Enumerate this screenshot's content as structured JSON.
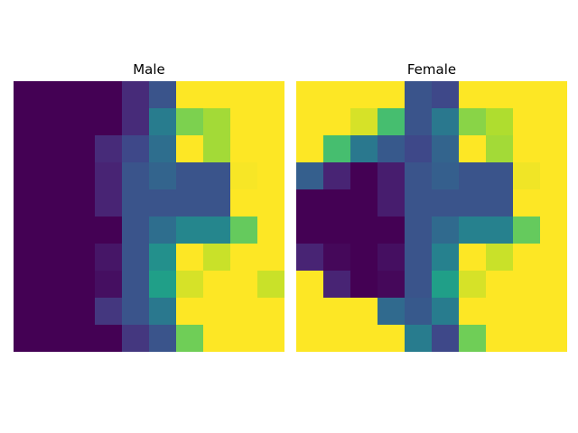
{
  "colormap": [
    "#440154",
    "#482878",
    "#3e4989",
    "#31688e",
    "#26828e",
    "#1f9e89",
    "#35b779",
    "#6ece58",
    "#b5de2b",
    "#fde725"
  ],
  "chart_data": [
    {
      "type": "heatmap",
      "title": "Male",
      "axis": "off",
      "value_range": [
        0,
        1
      ],
      "grid": [
        [
          0.0,
          0.0,
          0.0,
          0.0,
          0.12,
          0.26,
          1.0,
          1.0,
          1.0,
          1.0
        ],
        [
          0.0,
          0.0,
          0.0,
          0.0,
          0.12,
          0.42,
          0.8,
          0.86,
          1.0,
          1.0
        ],
        [
          0.0,
          0.0,
          0.0,
          0.12,
          0.22,
          0.36,
          1.0,
          0.86,
          1.0,
          1.0
        ],
        [
          0.0,
          0.0,
          0.0,
          0.1,
          0.26,
          0.32,
          0.26,
          0.26,
          0.99,
          1.0
        ],
        [
          0.0,
          0.0,
          0.0,
          0.1,
          0.26,
          0.26,
          0.26,
          0.26,
          1.0,
          1.0
        ],
        [
          0.0,
          0.0,
          0.0,
          0.0,
          0.26,
          0.36,
          0.46,
          0.46,
          0.76,
          1.0
        ],
        [
          0.0,
          0.0,
          0.0,
          0.06,
          0.26,
          0.5,
          1.0,
          0.92,
          1.0,
          1.0
        ],
        [
          0.0,
          0.0,
          0.0,
          0.04,
          0.26,
          0.56,
          0.94,
          1.0,
          1.0,
          0.92
        ],
        [
          0.0,
          0.0,
          0.0,
          0.16,
          0.26,
          0.4,
          1.0,
          1.0,
          1.0,
          1.0
        ],
        [
          0.0,
          0.0,
          0.0,
          0.0,
          0.16,
          0.26,
          0.78,
          1.0,
          1.0,
          1.0
        ]
      ]
    },
    {
      "type": "heatmap",
      "title": "Female",
      "axis": "off",
      "value_range": [
        0,
        1
      ],
      "grid": [
        [
          1.0,
          1.0,
          1.0,
          1.0,
          0.26,
          0.22,
          1.0,
          1.0,
          1.0,
          1.0
        ],
        [
          1.0,
          1.0,
          0.94,
          0.7,
          0.26,
          0.4,
          0.82,
          0.88,
          1.0,
          1.0
        ],
        [
          1.0,
          0.7,
          0.4,
          0.28,
          0.22,
          0.32,
          1.0,
          0.86,
          1.0,
          1.0
        ],
        [
          0.3,
          0.1,
          0.0,
          0.08,
          0.26,
          0.3,
          0.26,
          0.26,
          0.98,
          1.0
        ],
        [
          0.0,
          0.0,
          0.0,
          0.08,
          0.26,
          0.26,
          0.26,
          0.26,
          1.0,
          1.0
        ],
        [
          0.0,
          0.0,
          0.0,
          0.0,
          0.26,
          0.34,
          0.44,
          0.44,
          0.76,
          1.0
        ],
        [
          0.1,
          0.02,
          0.0,
          0.04,
          0.26,
          0.44,
          1.0,
          0.92,
          1.0,
          1.0
        ],
        [
          1.0,
          0.1,
          0.0,
          0.02,
          0.26,
          0.56,
          0.94,
          1.0,
          1.0,
          1.0
        ],
        [
          1.0,
          1.0,
          1.0,
          0.34,
          0.28,
          0.42,
          1.0,
          1.0,
          1.0,
          1.0
        ],
        [
          1.0,
          1.0,
          1.0,
          1.0,
          0.42,
          0.22,
          0.78,
          1.0,
          1.0,
          1.0
        ]
      ]
    }
  ]
}
